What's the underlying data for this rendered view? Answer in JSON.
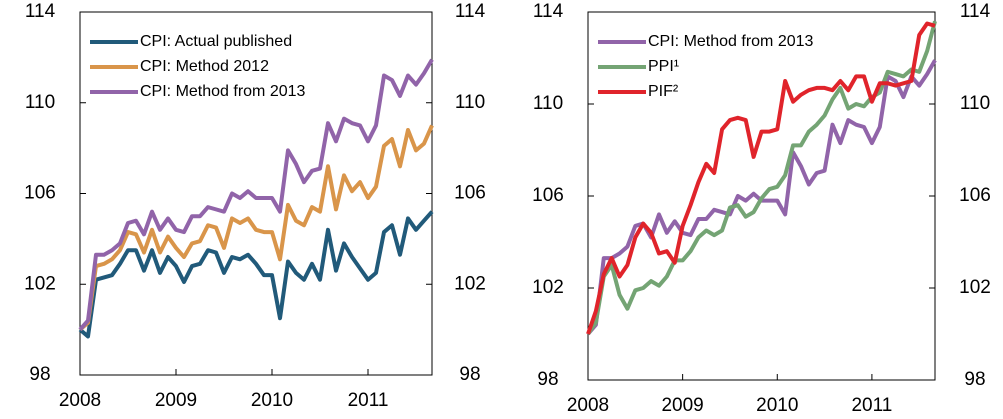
{
  "chart_data": [
    {
      "type": "line",
      "legend": "upper left",
      "categories": [
        "2008",
        null,
        null,
        null,
        null,
        null,
        null,
        null,
        null,
        null,
        null,
        null,
        "2009",
        null,
        null,
        null,
        null,
        null,
        null,
        null,
        null,
        null,
        null,
        null,
        "2010",
        null,
        null,
        null,
        null,
        null,
        null,
        null,
        null,
        null,
        null,
        null,
        "2011",
        null,
        null,
        null,
        null,
        null,
        null,
        null,
        null
      ],
      "ylim": [
        98,
        114
      ],
      "yticks": [
        98,
        102,
        106,
        110,
        114
      ],
      "y2lim": [
        98,
        114
      ],
      "y2ticks": [
        98,
        102,
        106,
        110,
        114
      ],
      "series": [
        {
          "name": "CPI: Actual published",
          "color": "#215a7a",
          "values": [
            100.0,
            99.7,
            102.2,
            102.3,
            102.4,
            102.9,
            103.5,
            103.5,
            102.6,
            103.5,
            102.5,
            103.2,
            102.8,
            102.1,
            102.8,
            102.9,
            103.5,
            103.4,
            102.5,
            103.2,
            103.1,
            103.3,
            102.9,
            102.4,
            102.4,
            100.5,
            103.0,
            102.5,
            102.2,
            102.9,
            102.2,
            104.4,
            102.6,
            103.8,
            103.2,
            102.7,
            102.2,
            102.5,
            104.3,
            104.6,
            103.3,
            104.9,
            104.4,
            104.8,
            105.2
          ]
        },
        {
          "name": "CPI: Method 2012",
          "color": "#d9954a",
          "values": [
            100.0,
            100.3,
            102.8,
            102.9,
            103.1,
            103.5,
            104.3,
            104.2,
            103.4,
            104.4,
            103.4,
            104.1,
            103.6,
            103.2,
            103.8,
            103.9,
            104.6,
            104.5,
            103.6,
            104.9,
            104.7,
            104.9,
            104.4,
            104.3,
            104.3,
            103.1,
            105.5,
            104.8,
            104.6,
            105.4,
            105.2,
            107.2,
            105.3,
            106.8,
            106.1,
            106.5,
            105.8,
            106.3,
            108.1,
            108.4,
            107.2,
            108.8,
            107.9,
            108.2,
            109.0
          ]
        },
        {
          "name": "CPI: Method from 2013",
          "color": "#9164a9",
          "values": [
            100.0,
            100.4,
            103.3,
            103.3,
            103.5,
            103.8,
            104.7,
            104.8,
            104.2,
            105.2,
            104.4,
            104.9,
            104.4,
            104.3,
            105.0,
            105.0,
            105.4,
            105.3,
            105.2,
            106.0,
            105.8,
            106.1,
            105.8,
            105.8,
            105.8,
            105.2,
            107.9,
            107.3,
            106.5,
            107.0,
            107.1,
            109.1,
            108.3,
            109.3,
            109.1,
            109.0,
            108.3,
            109.0,
            111.2,
            111.0,
            110.3,
            111.2,
            110.8,
            111.3,
            111.9
          ]
        }
      ]
    },
    {
      "type": "line",
      "legend": "upper left",
      "categories": [
        "2008",
        null,
        null,
        null,
        null,
        null,
        null,
        null,
        null,
        null,
        null,
        null,
        "2009",
        null,
        null,
        null,
        null,
        null,
        null,
        null,
        null,
        null,
        null,
        null,
        "2010",
        null,
        null,
        null,
        null,
        null,
        null,
        null,
        null,
        null,
        null,
        null,
        "2011",
        null,
        null,
        null,
        null,
        null,
        null,
        null,
        null
      ],
      "ylim": [
        98,
        114
      ],
      "yticks": [
        98,
        102,
        106,
        110,
        114
      ],
      "y2lim": [
        98,
        114
      ],
      "y2ticks": [
        98,
        102,
        106,
        110,
        114
      ],
      "series": [
        {
          "name": "CPI: Method from 2013",
          "color": "#9164a9",
          "values": [
            100.0,
            100.4,
            103.3,
            103.3,
            103.5,
            103.8,
            104.7,
            104.8,
            104.2,
            105.2,
            104.4,
            104.9,
            104.4,
            104.3,
            105.0,
            105.0,
            105.4,
            105.3,
            105.2,
            106.0,
            105.8,
            106.1,
            105.8,
            105.8,
            105.8,
            105.2,
            107.9,
            107.3,
            106.5,
            107.0,
            107.1,
            109.1,
            108.3,
            109.3,
            109.1,
            109.0,
            108.3,
            109.0,
            111.2,
            111.0,
            110.3,
            111.2,
            110.8,
            111.3,
            111.9
          ]
        },
        {
          "name": "PPI¹",
          "color": "#74a474",
          "values": [
            100.0,
            100.5,
            102.5,
            103.0,
            101.7,
            101.1,
            101.9,
            102.0,
            102.3,
            102.1,
            102.5,
            103.2,
            103.2,
            103.6,
            104.2,
            104.5,
            104.3,
            104.5,
            105.5,
            105.6,
            105.1,
            105.3,
            105.9,
            106.3,
            106.4,
            106.9,
            108.2,
            108.2,
            108.8,
            109.1,
            109.5,
            110.2,
            110.7,
            109.8,
            110.0,
            109.9,
            110.3,
            110.5,
            111.4,
            111.3,
            111.2,
            111.5,
            111.4,
            112.3,
            113.6
          ]
        },
        {
          "name": "PIF²",
          "color": "#e0242b",
          "values": [
            100.0,
            101.0,
            102.6,
            103.3,
            102.5,
            103.0,
            104.2,
            104.8,
            104.4,
            103.5,
            103.6,
            103.1,
            104.7,
            105.6,
            106.6,
            107.4,
            107.0,
            108.9,
            109.3,
            109.4,
            109.3,
            107.7,
            108.8,
            108.8,
            108.9,
            111.0,
            110.1,
            110.4,
            110.6,
            110.7,
            110.7,
            110.6,
            111.0,
            110.6,
            111.2,
            111.2,
            110.1,
            110.9,
            110.9,
            110.8,
            110.9,
            111.0,
            113.0,
            113.5,
            113.4
          ]
        }
      ]
    }
  ]
}
